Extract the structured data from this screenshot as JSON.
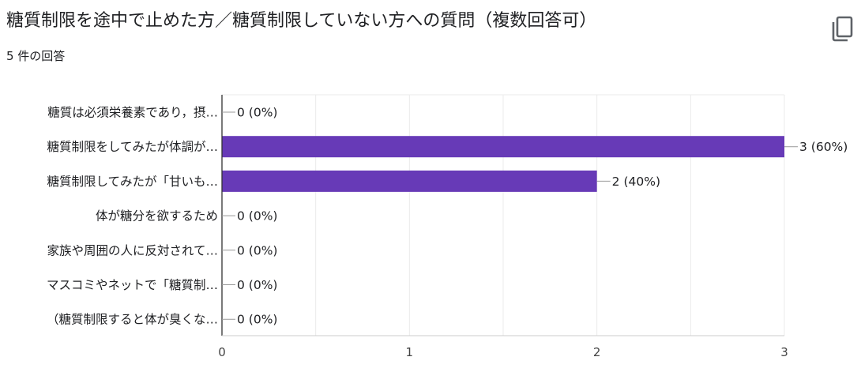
{
  "header": {
    "title": "糖質制限を途中で止めた方／糖質制限していない方への質問（複数回答可）",
    "response_count": "5 件の回答",
    "copy_icon": "copy-icon"
  },
  "colors": {
    "bar": "#673ab7",
    "grid": "#ebebeb",
    "axis": "#333333",
    "text": "#202124"
  },
  "chart_data": {
    "type": "bar",
    "orientation": "horizontal",
    "categories": [
      "糖質は必須栄養素であり，摂…",
      "糖質制限をしてみたが体調が…",
      "糖質制限してみたが「甘いも…",
      "体が糖分を欲するため",
      "家族や周囲の人に反対されて…",
      "マスコミやネットで「糖質制…",
      "（糖質制限すると体が臭くな…"
    ],
    "values": [
      0,
      3,
      2,
      0,
      0,
      0,
      0
    ],
    "data_labels": [
      "0 (0%)",
      "3 (60%)",
      "2 (40%)",
      "0 (0%)",
      "0 (0%)",
      "0 (0%)",
      "0 (0%)"
    ],
    "xlim": [
      0,
      3
    ],
    "xticks": [
      "0",
      "1",
      "2",
      "3"
    ],
    "grid": true,
    "legend": "none"
  }
}
